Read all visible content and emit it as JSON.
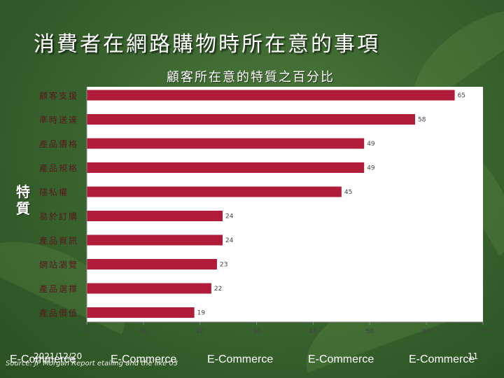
{
  "slide": {
    "title": "消費者在網路購物時所在意的事項",
    "date": "2021/12/20",
    "page_number": "11",
    "source": "Source: JP Morgan Report etailing and the like 03",
    "footer_labels": [
      "E-Commerce",
      "E-Commerce",
      "E-Commerce",
      "E-Commerce",
      "E-Commerce"
    ]
  },
  "colors": {
    "bar": "#b01c3a",
    "plot_bg": "#ffffff",
    "label": "#5a1a1a"
  },
  "chart_data": {
    "type": "bar",
    "orientation": "horizontal",
    "title": "顧客所在意的特質之百分比",
    "ylabel": "特質",
    "xlabel": "",
    "categories": [
      "顧客支援",
      "準時送達",
      "產品價格",
      "產品規格",
      "隱私權",
      "易於訂購",
      "產品資訊",
      "網站瀏覽",
      "產品選擇",
      "產品價值"
    ],
    "values": [
      65,
      58,
      49,
      49,
      45,
      24,
      24,
      23,
      22,
      19
    ],
    "xlim": [
      0,
      70
    ],
    "xticks": [
      0,
      10,
      20,
      30,
      40,
      50,
      60,
      70
    ],
    "grid": false,
    "data_labels": true
  }
}
